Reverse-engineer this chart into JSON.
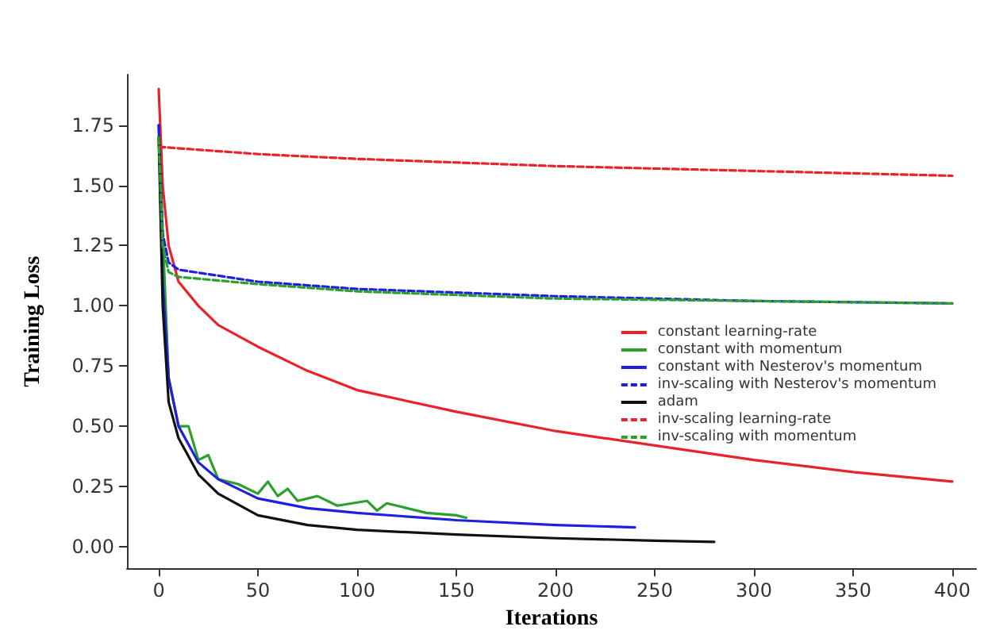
{
  "chart_data": {
    "type": "line",
    "xlabel": "Iterations",
    "ylabel": "Training Loss",
    "xlim": [
      -16,
      412
    ],
    "ylim": [
      -0.09,
      1.96
    ],
    "xticks": [
      0,
      50,
      100,
      150,
      200,
      250,
      300,
      350,
      400
    ],
    "yticks": [
      {
        "value": 0,
        "label": "0.00"
      },
      0.25,
      {
        "value": 0.5,
        "label": "0.50"
      },
      0.75,
      {
        "value": 1,
        "label": "1.00"
      },
      1.25,
      {
        "value": 1.5,
        "label": "1.50"
      },
      1.75
    ],
    "grid": false,
    "legend": "right",
    "marker": "none",
    "series": [
      {
        "name": "constant learning-rate",
        "color": "#e8232a",
        "line_style": "solid",
        "x": [
          0,
          2,
          5,
          10,
          20,
          30,
          50,
          75,
          100,
          150,
          200,
          250,
          300,
          350,
          400
        ],
        "values": [
          1.9,
          1.5,
          1.25,
          1.1,
          1.0,
          0.92,
          0.83,
          0.73,
          0.65,
          0.56,
          0.48,
          0.42,
          0.36,
          0.31,
          0.27
        ]
      },
      {
        "name": "constant with momentum",
        "color": "#2ca02c",
        "line_style": "solid",
        "x": [
          0,
          5,
          10,
          15,
          20,
          25,
          30,
          40,
          50,
          55,
          60,
          65,
          70,
          80,
          90,
          105,
          110,
          115,
          125,
          135,
          150,
          155
        ],
        "values": [
          1.7,
          0.7,
          0.5,
          0.5,
          0.36,
          0.38,
          0.28,
          0.26,
          0.22,
          0.27,
          0.21,
          0.24,
          0.19,
          0.21,
          0.17,
          0.19,
          0.15,
          0.18,
          0.16,
          0.14,
          0.13,
          0.12
        ]
      },
      {
        "name": "constant with Nesterov's momentum",
        "color": "#1f1fe0",
        "line_style": "solid",
        "x": [
          0,
          2,
          5,
          10,
          20,
          30,
          50,
          75,
          100,
          150,
          200,
          240
        ],
        "values": [
          1.75,
          1.1,
          0.7,
          0.5,
          0.35,
          0.28,
          0.2,
          0.16,
          0.14,
          0.11,
          0.09,
          0.08
        ]
      },
      {
        "name": "inv-scaling with Nesterov's momentum",
        "color": "#1f1fe0",
        "line_style": "dashed",
        "x": [
          0,
          2,
          5,
          10,
          50,
          100,
          200,
          300,
          400
        ],
        "values": [
          1.75,
          1.3,
          1.18,
          1.15,
          1.1,
          1.07,
          1.04,
          1.02,
          1.01
        ]
      },
      {
        "name": "adam",
        "color": "#111111",
        "line_style": "solid",
        "x": [
          0,
          2,
          5,
          10,
          20,
          30,
          50,
          75,
          100,
          150,
          200,
          250,
          280
        ],
        "values": [
          1.7,
          1.0,
          0.6,
          0.45,
          0.3,
          0.22,
          0.13,
          0.09,
          0.07,
          0.05,
          0.035,
          0.025,
          0.02
        ]
      },
      {
        "name": "inv-scaling learning-rate",
        "color": "#e8232a",
        "line_style": "dashed",
        "x": [
          0,
          50,
          100,
          200,
          300,
          400
        ],
        "values": [
          1.66,
          1.63,
          1.61,
          1.58,
          1.56,
          1.54
        ]
      },
      {
        "name": "inv-scaling with momentum",
        "color": "#2ca02c",
        "line_style": "dashed",
        "x": [
          0,
          2,
          5,
          10,
          50,
          100,
          200,
          300,
          400
        ],
        "values": [
          1.7,
          1.25,
          1.14,
          1.12,
          1.09,
          1.06,
          1.03,
          1.02,
          1.01
        ]
      }
    ]
  }
}
